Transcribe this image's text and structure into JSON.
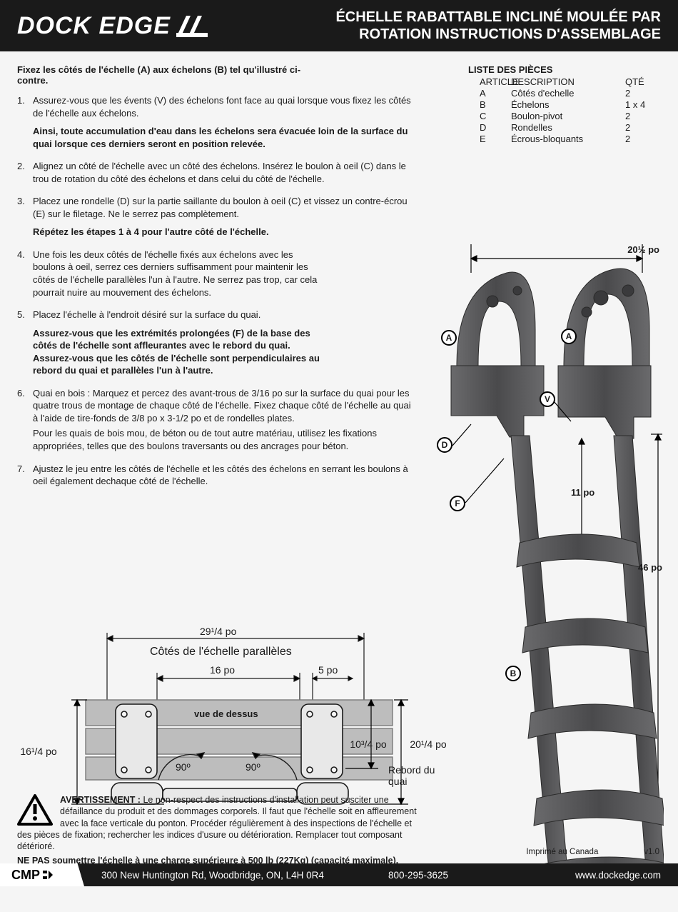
{
  "header": {
    "brand": "DOCK EDGE",
    "title_line1": "ÉCHELLE RABATTABLE INCLINÉ MOULÉE PAR",
    "title_line2": "ROTATION INSTRUCTIONS D'ASSEMBLAGE"
  },
  "intro": "Fixez les côtés de l'échelle (A) aux échelons (B) tel qu'illustré ci-contre.",
  "steps": [
    {
      "text": "Assurez-vous que les évents (V) des échelons font face au quai lorsque vous fixez les côtés de l'échelle aux échelons.",
      "note": "Ainsi, toute accumulation d'eau dans les échelons sera évacuée loin de la surface du quai lorsque ces derniers seront en position relevée."
    },
    {
      "text": "Alignez un côté de l'échelle avec un côté des échelons. Insérez le boulon à oeil (C) dans le trou de rotation du côté des échelons et dans celui du côté de l'échelle."
    },
    {
      "text": "Placez une rondelle (D) sur la partie saillante du boulon à oeil (C) et vissez un contre-écrou (E) sur le filetage. Ne le serrez pas complètement.",
      "note": "Répétez les étapes 1 à 4 pour l'autre côté de l'échelle."
    },
    {
      "text": "Une fois les deux côtés de l'échelle fixés aux échelons avec les boulons à oeil, serrez ces derniers suffisamment pour maintenir les côtés de l'échelle parallèles l'un à l'autre. Ne serrez pas trop, car cela pourrait nuire au mouvement des échelons.",
      "cls": "step4"
    },
    {
      "text": "Placez l'échelle à l'endroit désiré sur la surface du quai.",
      "note": "Assurez-vous que les extrémités prolongées (F) de la base des côtés de l'échelle sont affleurantes avec le rebord du quai. Assurez-vous que les côtés de l'échelle sont perpendiculaires au rebord du quai et parallèles l'un à l'autre.",
      "cls": "step5"
    },
    {
      "text": "Quai en bois : Marquez et percez des avant-trous de 3/16 po sur la surface du quai pour les quatre trous de montage de chaque côté de l'échelle. Fixez chaque côté de l'échelle au quai à l'aide de tire-fonds de 3/8 po x 3-1/2 po et de rondelles plates.\nPour les quais de bois mou, de béton ou de tout autre matériau, utilisez les fixations appropriées, telles que des boulons traversants ou des ancrages pour béton.",
      "cls": "step6"
    },
    {
      "text": "Ajustez le jeu entre les côtés de l'échelle et les côtés des échelons en serrant les boulons à oeil également dechaque côté de l'échelle.",
      "cls": "step7"
    }
  ],
  "parts": {
    "title": "LISTE DES PIÈCES",
    "headers": [
      "ARTICLE",
      "DESCRIPTION",
      "QTÉ"
    ],
    "rows": [
      [
        "A",
        "Côtés d'echelle",
        "2"
      ],
      [
        "B",
        "Échelons",
        "1 x 4"
      ],
      [
        "C",
        "Boulon-pivot",
        "2"
      ],
      [
        "D",
        "Rondelles",
        "2"
      ],
      [
        "E",
        "Écrous-bloquants",
        "2"
      ]
    ]
  },
  "product": {
    "callouts": {
      "A1": "A",
      "A2": "A",
      "V": "V",
      "D": "D",
      "F": "F",
      "B": "B"
    },
    "dims": {
      "top_width": "20½ po",
      "step_gap": "11 po",
      "height": "46 po"
    },
    "colors": {
      "plastic": "#5a5a5c",
      "plastic_dark": "#3e3e40",
      "line": "#1a1a1a"
    }
  },
  "topview": {
    "overall": "29¹/4 po",
    "subtitle": "Côtés de l'échelle parallèles",
    "inner": "16 po",
    "small": "5 po",
    "caption": "vue de dessus",
    "left_h": "16¹/4 po",
    "right_h1": "10³/4 po",
    "right_h2": "20¹/4 po",
    "rebord": "Rebord du quai",
    "angle": "90º",
    "colors": {
      "deck": "#bdbdbd",
      "bracket": "#e8e8e8",
      "line": "#1a1a1a"
    }
  },
  "warning": {
    "label": "AVERTISSEMENT :",
    "body": " Le non-respect des instructions d'installation peut susciter une défaillance du produit et des dommages corporels. Il faut que l'échelle soit en affleurement avec la face verticale du ponton. Procéder régulièrement à des inspections de l'échelle et des pièces de fixation; rechercher les indices d'usure ou détérioration. Remplacer tout composant détérioré.",
    "nepa": "NE PAS soumettre l'échelle à une charge supérieure à 500 lb (227Kg) (capacité maximale)."
  },
  "printed": "Imprimé au Canada",
  "version": "v1.0",
  "footer": {
    "cmp": "CMP",
    "address": "300 New Huntington Rd, Woodbridge, ON, L4H 0R4",
    "phone": "800-295-3625",
    "site": "www.dockedge.com"
  }
}
